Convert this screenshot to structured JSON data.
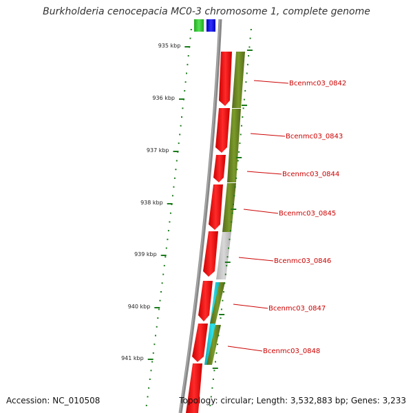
{
  "title": "Burkholderia cenocepacia MC0-3 chromosome 1, complete genome",
  "footer": {
    "accession": "Accession: NC_010508",
    "summary": "Topology: circular; Length: 3,532,883 bp; Genes: 3,233"
  },
  "ticks": [
    {
      "label": "935 kbp"
    },
    {
      "label": "936 kbp"
    },
    {
      "label": "937 kbp"
    },
    {
      "label": "938 kbp"
    },
    {
      "label": "939 kbp"
    },
    {
      "label": "940 kbp"
    },
    {
      "label": "941 kbp"
    }
  ],
  "genes": [
    {
      "label": "Bcenmc03_0842"
    },
    {
      "label": "Bcenmc03_0843"
    },
    {
      "label": "Bcenmc03_0844"
    },
    {
      "label": "Bcenmc03_0845"
    },
    {
      "label": "Bcenmc03_0846"
    },
    {
      "label": "Bcenmc03_0847"
    },
    {
      "label": "Bcenmc03_0848"
    }
  ],
  "colors": {
    "backbone": "#888888",
    "gene": "#ff0000",
    "cog_olive": "#6b8e23",
    "cog_gray": "#c8c8c8",
    "cog_cyan": "#17c3d0",
    "cog_green": "#33cc33",
    "cog_blue": "#0000ee",
    "tick": "#1a7a1a",
    "label": "#cc0000"
  }
}
